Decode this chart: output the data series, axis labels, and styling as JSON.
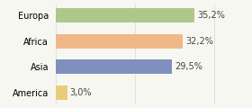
{
  "categories": [
    "America",
    "Asia",
    "Africa",
    "Europa"
  ],
  "values": [
    3.0,
    29.5,
    32.2,
    35.2
  ],
  "labels": [
    "3,0%",
    "29,5%",
    "32,2%",
    "35,2%"
  ],
  "bar_colors": [
    "#e8cc7a",
    "#8090be",
    "#f0b888",
    "#adc88a"
  ],
  "background_color": "#f7f7f2",
  "xlim": [
    0,
    42
  ],
  "bar_height": 0.55,
  "label_fontsize": 7,
  "tick_fontsize": 7,
  "label_color": "#444444",
  "grid_color": "#d8d8d8"
}
